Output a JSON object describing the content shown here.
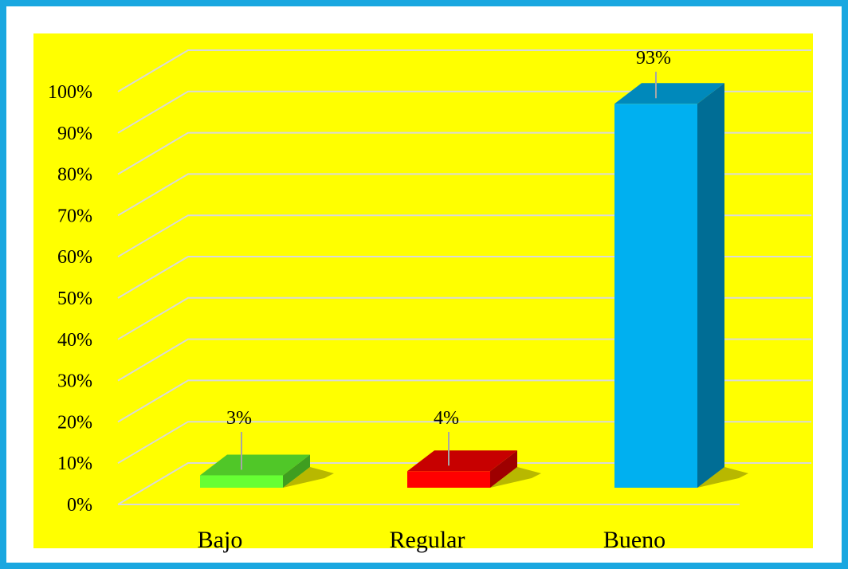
{
  "chart_data": {
    "type": "bar",
    "style": "3d-column",
    "categories": [
      "Bajo",
      "Regular",
      "Bueno"
    ],
    "values": [
      3,
      4,
      93
    ],
    "data_labels": [
      "3%",
      "4%",
      "93%"
    ],
    "bar_colors": [
      "#66ff33",
      "#ff0000",
      "#00b0f0"
    ],
    "ylim": [
      0,
      100
    ],
    "yticks": [
      "0%",
      "10%",
      "20%",
      "30%",
      "40%",
      "50%",
      "60%",
      "70%",
      "80%",
      "90%",
      "100%"
    ],
    "grid": true,
    "legend": "none",
    "plot_background": "#ffff00",
    "frame_color": "#1aa7e0"
  }
}
